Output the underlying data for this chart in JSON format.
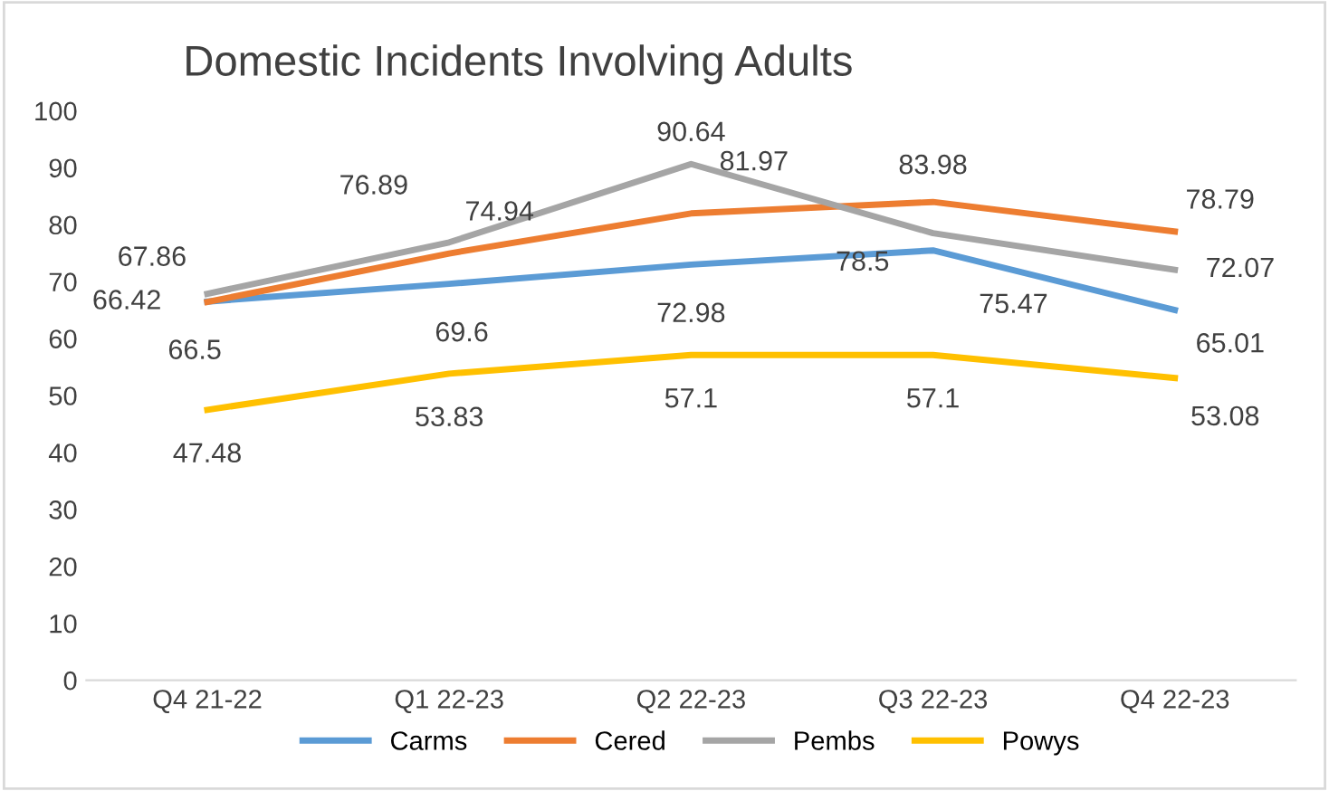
{
  "chart_data": {
    "type": "line",
    "title": "Domestic Incidents Involving Adults",
    "categories": [
      "Q4 21-22",
      "Q1 22-23",
      "Q2 22-23",
      "Q3 22-23",
      "Q4 22-23"
    ],
    "series": [
      {
        "name": "Carms",
        "color": "#5b9bd5",
        "values": [
          66.5,
          69.6,
          72.98,
          75.47,
          65.01
        ]
      },
      {
        "name": "Cered",
        "color": "#ed7d31",
        "values": [
          66.42,
          74.94,
          81.97,
          83.98,
          78.79
        ]
      },
      {
        "name": "Pembs",
        "color": "#a5a5a5",
        "values": [
          67.86,
          76.89,
          90.64,
          78.5,
          72.07
        ]
      },
      {
        "name": "Powys",
        "color": "#ffc000",
        "values": [
          47.48,
          53.83,
          57.1,
          57.1,
          53.08
        ]
      }
    ],
    "ylim": [
      0,
      100
    ],
    "yticks": [
      0,
      10,
      20,
      30,
      40,
      50,
      60,
      70,
      80,
      90,
      100
    ],
    "data_labels": true,
    "legend": "bottom",
    "grid": false,
    "marker": "none",
    "line_style": "solid"
  }
}
